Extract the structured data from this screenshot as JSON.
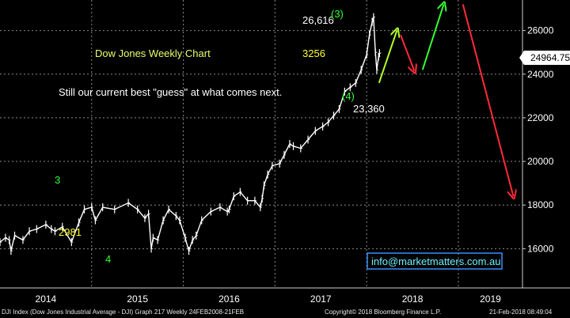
{
  "chart_data": {
    "type": "line",
    "title": "Dow Jones Weekly Chart",
    "subtitle": "Still our current best \"guess\" at what comes next.",
    "y_ticks": [
      16000,
      18000,
      20000,
      22000,
      24000,
      26000
    ],
    "y_tick_labels": [
      "16000",
      "18000",
      "20000",
      "22000",
      "24000",
      "26000"
    ],
    "ylim": [
      14200,
      27400
    ],
    "x_labels": [
      "2014",
      "2015",
      "2016",
      "2017",
      "2018",
      "2019"
    ],
    "grid": true,
    "last_price": "24964.75",
    "series": [
      {
        "values": [
          [
            2014.0,
            16300
          ],
          [
            2014.06,
            16500
          ],
          [
            2014.1,
            16400
          ],
          [
            2014.12,
            15900
          ],
          [
            2014.16,
            16600
          ],
          [
            2014.25,
            16400
          ],
          [
            2014.32,
            16800
          ],
          [
            2014.4,
            16900
          ],
          [
            2014.5,
            17100
          ],
          [
            2014.56,
            16900
          ],
          [
            2014.6,
            16800
          ],
          [
            2014.68,
            17000
          ],
          [
            2014.78,
            16300
          ],
          [
            2014.86,
            17200
          ],
          [
            2014.92,
            17800
          ],
          [
            2015.0,
            17900
          ],
          [
            2015.04,
            17300
          ],
          [
            2015.12,
            17900
          ],
          [
            2015.25,
            17800
          ],
          [
            2015.4,
            18100
          ],
          [
            2015.5,
            17800
          ],
          [
            2015.58,
            17400
          ],
          [
            2015.62,
            17600
          ],
          [
            2015.65,
            16000
          ],
          [
            2015.67,
            16500
          ],
          [
            2015.72,
            16400
          ],
          [
            2015.78,
            17300
          ],
          [
            2015.84,
            17800
          ],
          [
            2015.92,
            17500
          ],
          [
            2015.96,
            17300
          ],
          [
            2016.02,
            16500
          ],
          [
            2016.06,
            15900
          ],
          [
            2016.1,
            16400
          ],
          [
            2016.14,
            16600
          ],
          [
            2016.2,
            17300
          ],
          [
            2016.3,
            17700
          ],
          [
            2016.4,
            17900
          ],
          [
            2016.48,
            17700
          ],
          [
            2016.5,
            17800
          ],
          [
            2016.55,
            18400
          ],
          [
            2016.62,
            18600
          ],
          [
            2016.7,
            18200
          ],
          [
            2016.78,
            18200
          ],
          [
            2016.84,
            17900
          ],
          [
            2016.86,
            18300
          ],
          [
            2016.88,
            18900
          ],
          [
            2016.92,
            19400
          ],
          [
            2016.97,
            19800
          ],
          [
            2017.05,
            19900
          ],
          [
            2017.1,
            20300
          ],
          [
            2017.16,
            20800
          ],
          [
            2017.2,
            20700
          ],
          [
            2017.28,
            20600
          ],
          [
            2017.36,
            21000
          ],
          [
            2017.44,
            21400
          ],
          [
            2017.52,
            21600
          ],
          [
            2017.58,
            21800
          ],
          [
            2017.64,
            22100
          ],
          [
            2017.7,
            22400
          ],
          [
            2017.76,
            23200
          ],
          [
            2017.82,
            23400
          ],
          [
            2017.88,
            23600
          ],
          [
            2017.94,
            24200
          ],
          [
            2018.0,
            24900
          ],
          [
            2018.03,
            25800
          ],
          [
            2018.06,
            26400
          ],
          [
            2018.075,
            26616
          ],
          [
            2018.095,
            25000
          ],
          [
            2018.11,
            24200
          ],
          [
            2018.13,
            24800
          ],
          [
            2018.14,
            24964.75
          ]
        ]
      }
    ],
    "projections": [
      {
        "color": "#b4ff28",
        "from": [
          2018.135,
          23600
        ],
        "to": [
          2018.33,
          26000
        ]
      },
      {
        "color": "#ff2a3a",
        "from": [
          2018.37,
          25800
        ],
        "to": [
          2018.52,
          24150
        ]
      },
      {
        "color": "#33ff33",
        "from": [
          2018.61,
          24200
        ],
        "to": [
          2018.84,
          27200
        ]
      },
      {
        "color": "#ff2a3a",
        "from": [
          2019.05,
          27200
        ],
        "to": [
          2019.6,
          18400
        ]
      }
    ],
    "annotations": [
      {
        "text": "Dow Jones Weekly Chart",
        "color": "#e8ff6a"
      },
      {
        "text": "Still our current best \"guess\" at what comes next.",
        "color": "#ffffff"
      },
      {
        "text": "26,616",
        "color": "#ffffff"
      },
      {
        "text": "(3)",
        "color": "#33ff33"
      },
      {
        "text": "3256",
        "color": "#ffff33"
      },
      {
        "text": "(4)",
        "color": "#33ff33"
      },
      {
        "text": "23,360",
        "color": "#ffffff"
      },
      {
        "text": "3",
        "color": "#33ff33"
      },
      {
        "text": "2981",
        "color": "#ffff33"
      },
      {
        "text": "4",
        "color": "#33ff33"
      }
    ],
    "watermark_link": "info@marketmatters.com.au"
  },
  "footer": {
    "left": "DJI Index (Dow Jones Industrial Average - DJI) Graph 217  Weekly 24FEB2008-21FEB",
    "center": "Copyright© 2018 Bloomberg Finance L.P.",
    "right": "21-Feb-2018 08:49:04"
  },
  "colors": {
    "background": "#000000",
    "price": "#ffffff",
    "grid": "#8a8a8a",
    "axis_text": "#ffffff",
    "link_box": "#3a8dff"
  }
}
